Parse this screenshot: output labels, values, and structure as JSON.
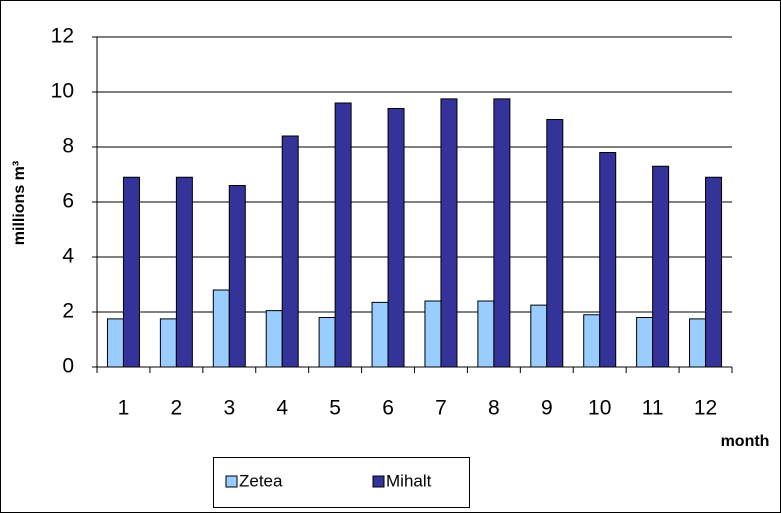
{
  "chart_data": {
    "type": "bar",
    "categories": [
      "1",
      "2",
      "3",
      "4",
      "5",
      "6",
      "7",
      "8",
      "9",
      "10",
      "11",
      "12"
    ],
    "series": [
      {
        "name": "Zetea",
        "color": "#99ccff",
        "values": [
          1.75,
          1.75,
          2.8,
          2.05,
          1.8,
          2.35,
          2.4,
          2.4,
          2.25,
          1.9,
          1.8,
          1.75
        ]
      },
      {
        "name": "Mihalt",
        "color": "#333399",
        "values": [
          6.9,
          6.9,
          6.6,
          8.4,
          9.6,
          9.4,
          9.75,
          9.75,
          9.0,
          7.8,
          7.3,
          6.9
        ]
      }
    ],
    "ylim": [
      0,
      12
    ],
    "yticks": [
      0,
      2,
      4,
      6,
      8,
      10,
      12
    ],
    "grid": true,
    "ylabel": "millions m³",
    "xlabel": "month"
  }
}
